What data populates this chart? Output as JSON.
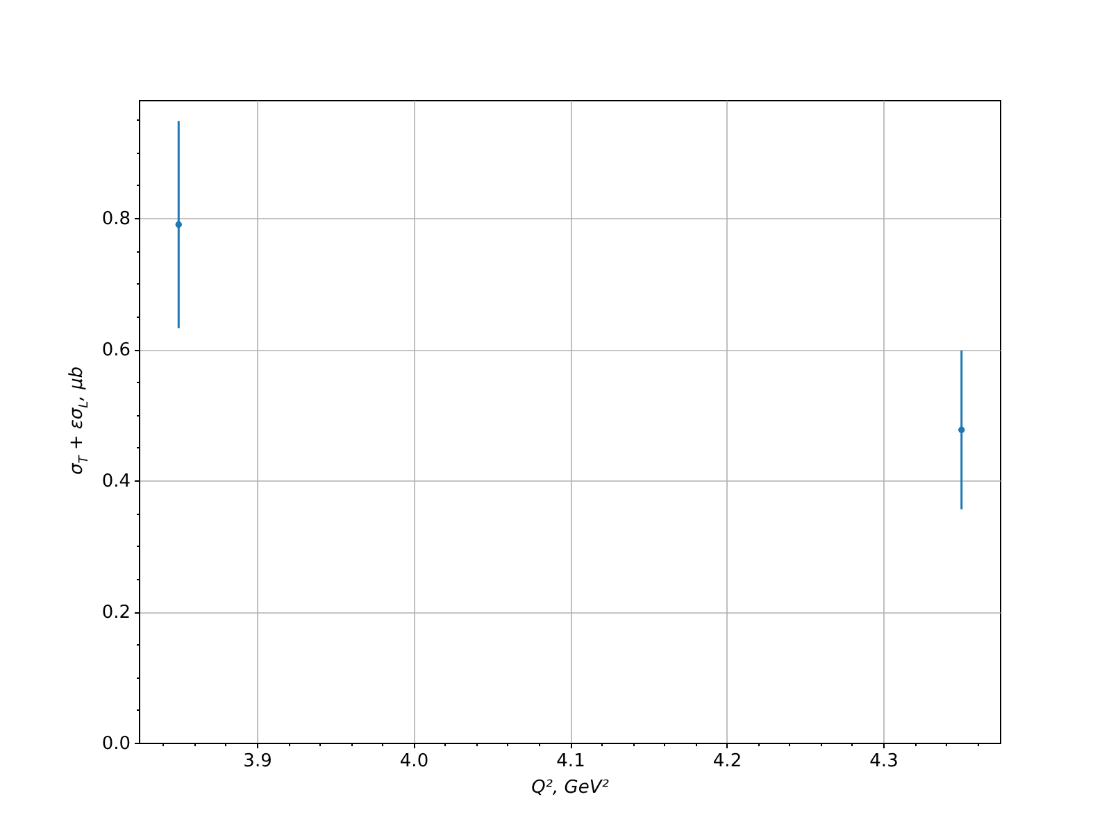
{
  "chart_data": {
    "type": "scatter",
    "xlabel": "Q², GeV²",
    "ylabel": "σ$_{T}$ + εσ$_{L}$, μb",
    "x": [
      3.85,
      4.35
    ],
    "series": [
      {
        "color": "#1f77b4",
        "values": [
          0.79,
          0.477
        ],
        "errors": [
          0.158,
          0.121
        ]
      }
    ],
    "xlim": [
      3.8246,
      4.3745
    ],
    "ylim": [
      0,
      0.98
    ],
    "xticks": [
      {
        "value": 3.84,
        "label": null
      },
      {
        "value": 3.86,
        "label": null
      },
      {
        "value": 3.88,
        "label": null
      },
      3.9,
      {
        "value": 3.92,
        "label": null
      },
      {
        "value": 3.94,
        "label": null
      },
      {
        "value": 3.96,
        "label": null
      },
      {
        "value": 3.98,
        "label": null
      },
      {
        "value": 4.0,
        "label": "4.0"
      },
      {
        "value": 4.02,
        "label": null
      },
      {
        "value": 4.04,
        "label": null
      },
      {
        "value": 4.06,
        "label": null
      },
      {
        "value": 4.08,
        "label": null
      },
      4.1,
      {
        "value": 4.12,
        "label": null
      },
      {
        "value": 4.14,
        "label": null
      },
      {
        "value": 4.16,
        "label": null
      },
      {
        "value": 4.18,
        "label": null
      },
      4.2,
      {
        "value": 4.22,
        "label": null
      },
      {
        "value": 4.24,
        "label": null
      },
      {
        "value": 4.26,
        "label": null
      },
      {
        "value": 4.28,
        "label": null
      },
      4.3,
      {
        "value": 4.32,
        "label": null
      },
      {
        "value": 4.34,
        "label": null
      },
      {
        "value": 4.36,
        "label": null
      }
    ],
    "yticks": [
      {
        "value": 0,
        "label": "0.0"
      },
      {
        "value": 0.05,
        "label": null
      },
      {
        "value": 0.1,
        "label": null
      },
      {
        "value": 0.15,
        "label": null
      },
      0.2,
      {
        "value": 0.25,
        "label": null
      },
      {
        "value": 0.3,
        "label": null
      },
      {
        "value": 0.35,
        "label": null
      },
      0.4,
      {
        "value": 0.45,
        "label": null
      },
      {
        "value": 0.5,
        "label": null
      },
      {
        "value": 0.55,
        "label": null
      },
      0.6,
      {
        "value": 0.65,
        "label": null
      },
      {
        "value": 0.7,
        "label": null
      },
      {
        "value": 0.75,
        "label": null
      },
      0.8,
      {
        "value": 0.85,
        "label": null
      },
      {
        "value": 0.9,
        "label": null
      },
      {
        "value": 0.95,
        "label": null
      }
    ],
    "grid": true,
    "marker": "circle"
  }
}
